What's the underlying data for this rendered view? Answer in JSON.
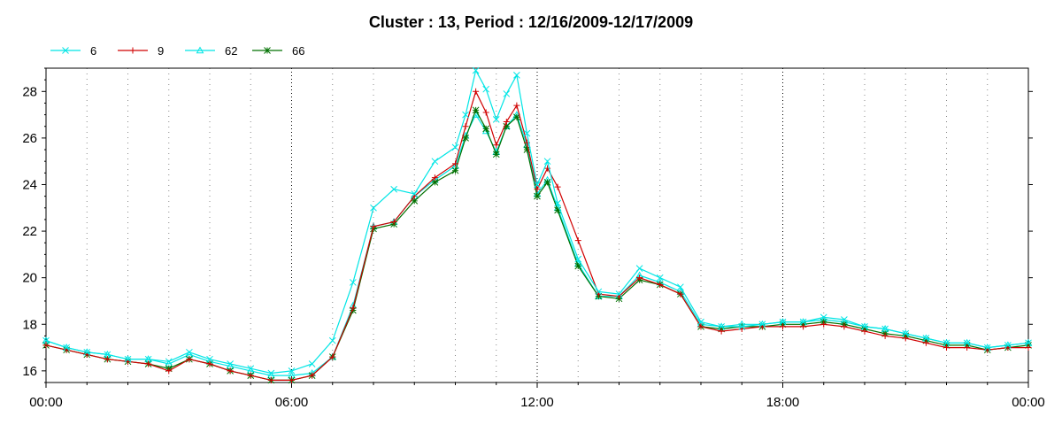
{
  "chart_data": {
    "type": "line",
    "title": "Cluster : 13, Period : 12/16/2009-12/17/2009",
    "xlabel": "",
    "ylabel": "",
    "x_ticks": [
      "00:00",
      "06:00",
      "12:00",
      "18:00",
      "00:00"
    ],
    "x_tick_hours": [
      0,
      6,
      12,
      18,
      24
    ],
    "y_ticks": [
      16,
      18,
      20,
      22,
      24,
      26,
      28
    ],
    "xlim": [
      0,
      24
    ],
    "ylim": [
      15.5,
      29.0
    ],
    "legend_position": "top-left",
    "grid": "vertical dotted",
    "x": [
      0,
      0.5,
      1,
      1.5,
      2,
      2.5,
      3,
      3.5,
      4,
      4.5,
      5,
      5.5,
      6,
      6.5,
      7,
      7.5,
      8,
      8.5,
      9,
      9.5,
      10,
      10.25,
      10.5,
      10.75,
      11,
      11.25,
      11.5,
      11.75,
      12,
      12.25,
      12.5,
      13,
      13.5,
      14,
      14.5,
      15,
      15.5,
      16,
      16.5,
      17,
      17.5,
      18,
      18.5,
      19,
      19.5,
      20,
      20.5,
      21,
      21.5,
      22,
      22.5,
      23,
      23.5,
      24
    ],
    "series": [
      {
        "name": "6",
        "color": "#00e5e5",
        "marker": "x",
        "values": [
          17.3,
          17.0,
          16.8,
          16.7,
          16.5,
          16.5,
          16.4,
          16.8,
          16.5,
          16.3,
          16.1,
          15.9,
          16.0,
          16.3,
          17.3,
          19.8,
          23.0,
          23.8,
          23.6,
          25.0,
          25.6,
          27.0,
          28.9,
          28.1,
          26.8,
          27.9,
          28.7,
          26.2,
          24.0,
          25.0,
          23.2,
          20.8,
          19.4,
          19.3,
          20.4,
          20.0,
          19.6,
          18.1,
          17.9,
          17.9,
          18.0,
          18.1,
          18.1,
          18.3,
          18.2,
          17.9,
          17.8,
          17.6,
          17.4,
          17.2,
          17.2,
          17.0,
          17.1,
          17.2
        ]
      },
      {
        "name": "9",
        "color": "#d00000",
        "marker": "+",
        "values": [
          17.1,
          16.9,
          16.7,
          16.5,
          16.4,
          16.3,
          16.0,
          16.5,
          16.3,
          16.0,
          15.8,
          15.6,
          15.6,
          15.8,
          16.6,
          18.7,
          22.2,
          22.4,
          23.5,
          24.3,
          24.9,
          26.5,
          28.0,
          27.1,
          25.7,
          26.7,
          27.4,
          25.8,
          23.8,
          24.7,
          23.9,
          21.6,
          19.3,
          19.2,
          20.0,
          19.7,
          19.3,
          17.9,
          17.7,
          17.8,
          17.9,
          17.9,
          17.9,
          18.0,
          17.9,
          17.7,
          17.5,
          17.4,
          17.2,
          17.0,
          17.0,
          16.9,
          17.0,
          17.0
        ]
      },
      {
        "name": "62",
        "color": "#00e5e5",
        "marker": "triangle",
        "values": [
          17.3,
          17.0,
          16.8,
          16.7,
          16.5,
          16.5,
          16.3,
          16.7,
          16.4,
          16.2,
          16.0,
          15.8,
          15.8,
          15.9,
          16.6,
          18.8,
          22.2,
          22.4,
          23.5,
          24.2,
          24.8,
          26.1,
          27.0,
          26.3,
          25.4,
          26.5,
          27.0,
          25.7,
          23.6,
          24.2,
          23.0,
          20.6,
          19.2,
          19.2,
          20.1,
          19.8,
          19.4,
          18.0,
          17.9,
          18.0,
          18.0,
          18.1,
          18.1,
          18.2,
          18.1,
          17.9,
          17.8,
          17.6,
          17.4,
          17.2,
          17.2,
          17.0,
          17.1,
          17.2
        ]
      },
      {
        "name": "66",
        "color": "#007000",
        "marker": "star",
        "values": [
          17.1,
          16.9,
          16.7,
          16.5,
          16.4,
          16.3,
          16.1,
          16.5,
          16.3,
          16.0,
          15.8,
          15.6,
          15.6,
          15.8,
          16.6,
          18.6,
          22.1,
          22.3,
          23.3,
          24.1,
          24.6,
          26.0,
          27.2,
          26.4,
          25.3,
          26.5,
          26.9,
          25.5,
          23.5,
          24.1,
          22.9,
          20.5,
          19.2,
          19.1,
          19.9,
          19.7,
          19.3,
          17.9,
          17.8,
          17.9,
          17.9,
          18.0,
          18.0,
          18.1,
          18.0,
          17.8,
          17.6,
          17.5,
          17.3,
          17.1,
          17.1,
          16.9,
          17.0,
          17.1
        ]
      }
    ]
  }
}
